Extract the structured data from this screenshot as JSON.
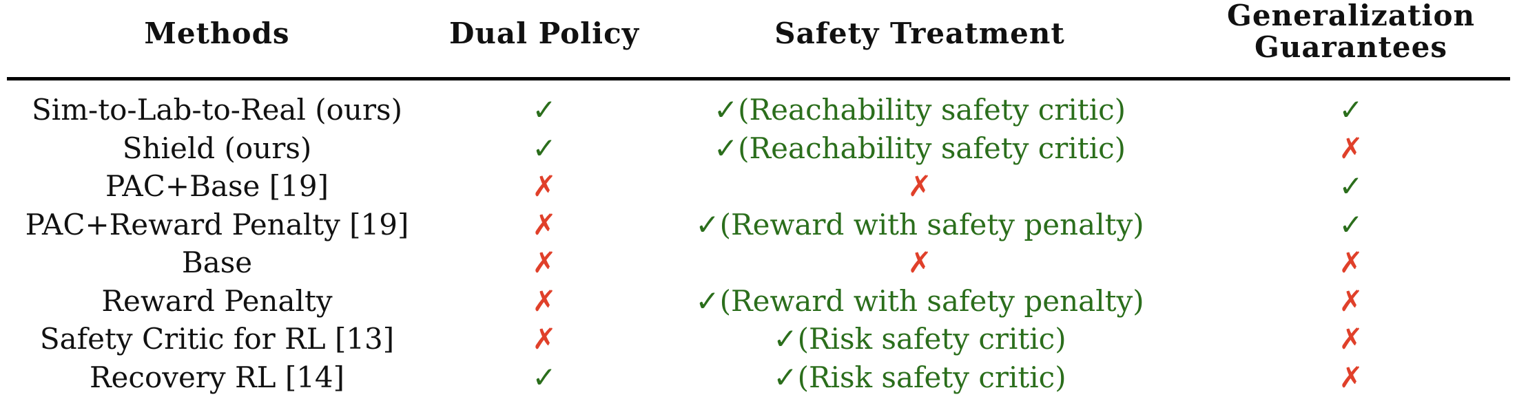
{
  "colors": {
    "check": "#2b6e1c",
    "cross": "#e0402a",
    "text": "#111111"
  },
  "header": {
    "methods": "Methods",
    "dual_policy": "Dual Policy",
    "safety_treatment": "Safety Treatment",
    "generalization_line1": "Generalization",
    "generalization_line2": "Guarantees"
  },
  "glyphs": {
    "check": "✓",
    "cross": "✗"
  },
  "rows": [
    {
      "method": "Sim-to-Lab-to-Real (ours)",
      "dual": "check",
      "safety": "check",
      "safety_text": "(Reachability safety critic)",
      "gen": "check"
    },
    {
      "method": "Shield (ours)",
      "dual": "check",
      "safety": "check",
      "safety_text": "(Reachability safety critic)",
      "gen": "cross"
    },
    {
      "method": "PAC+Base [19]",
      "dual": "cross",
      "safety": "cross",
      "safety_text": "",
      "gen": "check"
    },
    {
      "method": "PAC+Reward Penalty [19]",
      "dual": "cross",
      "safety": "check",
      "safety_text": "(Reward with safety penalty)",
      "gen": "check"
    },
    {
      "method": "Base",
      "dual": "cross",
      "safety": "cross",
      "safety_text": "",
      "gen": "cross"
    },
    {
      "method": "Reward Penalty",
      "dual": "cross",
      "safety": "check",
      "safety_text": "(Reward with safety penalty)",
      "gen": "cross"
    },
    {
      "method": "Safety Critic for RL [13]",
      "dual": "cross",
      "safety": "check",
      "safety_text": "(Risk safety critic)",
      "gen": "cross"
    },
    {
      "method": "Recovery RL [14]",
      "dual": "check",
      "safety": "check",
      "safety_text": "(Risk safety critic)",
      "gen": "cross"
    }
  ]
}
